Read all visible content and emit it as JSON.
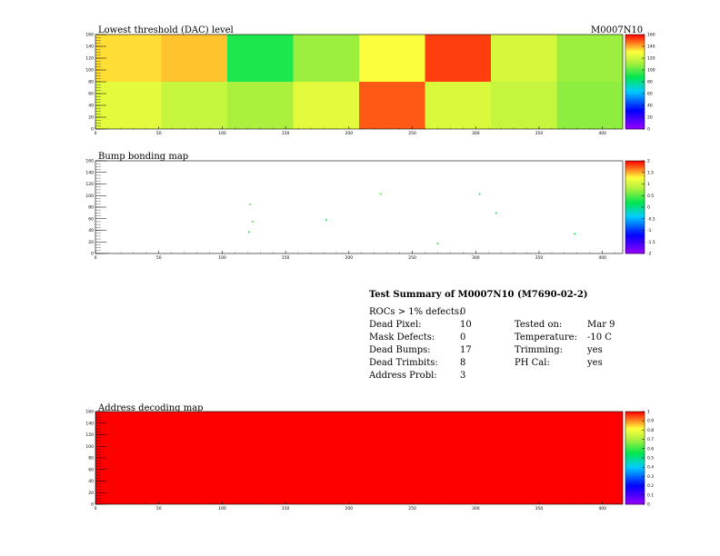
{
  "module_name": "M0007N10",
  "chart_data": [
    {
      "type": "heatmap",
      "title": "Lowest threshold (DAC) level",
      "x_range": [
        0,
        416
      ],
      "y_range": [
        0,
        160
      ],
      "x_ticks": [
        "0",
        "50",
        "100",
        "150",
        "200",
        "250",
        "300",
        "350",
        "400"
      ],
      "y_ticks": [
        "0",
        "20",
        "40",
        "60",
        "80",
        "100",
        "120",
        "140",
        "160"
      ],
      "z_range": [
        0,
        160
      ],
      "z_ticks": [
        "0",
        "20",
        "40",
        "60",
        "80",
        "100",
        "120",
        "140",
        "160"
      ],
      "roc_grid": {
        "columns": 8,
        "rows": 2
      },
      "roc_mean_levels": [
        [
          125,
          118,
          112,
          125,
          150,
          123,
          118,
          108
        ],
        [
          135,
          138,
          92,
          110,
          130,
          153,
          122,
          110
        ]
      ],
      "grid": false
    },
    {
      "type": "heatmap",
      "title": "Bump bonding map",
      "x_range": [
        0,
        416
      ],
      "y_range": [
        0,
        160
      ],
      "x_ticks": [
        "0",
        "50",
        "100",
        "150",
        "200",
        "250",
        "300",
        "350",
        "400"
      ],
      "y_ticks": [
        "0",
        "20",
        "40",
        "60",
        "80",
        "100",
        "120",
        "140",
        "160"
      ],
      "z_range": [
        -2,
        2
      ],
      "z_ticks": [
        "-2",
        "-1.5",
        "-1",
        "-0.5",
        "0",
        "0.5",
        "1",
        "1.5",
        "2"
      ],
      "points": [
        {
          "x": 122,
          "y": 85,
          "v": 0.5
        },
        {
          "x": 124,
          "y": 55,
          "v": 0.5
        },
        {
          "x": 121,
          "y": 37,
          "v": 0.3
        },
        {
          "x": 182,
          "y": 58,
          "v": 0.3
        },
        {
          "x": 225,
          "y": 103,
          "v": 0.5
        },
        {
          "x": 270,
          "y": 17,
          "v": 0.3
        },
        {
          "x": 303,
          "y": 103,
          "v": 0.3
        },
        {
          "x": 316,
          "y": 70,
          "v": 0.3
        },
        {
          "x": 378,
          "y": 34,
          "v": 0.3
        }
      ],
      "grid": false
    },
    {
      "type": "heatmap",
      "title": "Address decoding map",
      "x_range": [
        0,
        416
      ],
      "y_range": [
        0,
        160
      ],
      "x_ticks": [
        "0",
        "50",
        "100",
        "150",
        "200",
        "250",
        "300",
        "350",
        "400"
      ],
      "y_ticks": [
        "0",
        "20",
        "40",
        "60",
        "80",
        "100",
        "120",
        "140",
        "160"
      ],
      "z_range": [
        0,
        1
      ],
      "z_ticks": [
        "0",
        "0.1",
        "0.2",
        "0.3",
        "0.4",
        "0.5",
        "0.6",
        "0.7",
        "0.8",
        "0.9",
        "1"
      ],
      "fill_value": 1,
      "grid": false
    }
  ],
  "summary": {
    "heading": "Test Summary of M0007N10 (M7690-02-2)",
    "rows": [
      {
        "label": "ROCs > 1% defects:",
        "value": "0"
      },
      {
        "label": "Dead Pixel:",
        "value": "10",
        "label2": "Tested on:",
        "value2": "Mar 9"
      },
      {
        "label": "Mask Defects:",
        "value": "0",
        "label2": "Temperature:",
        "value2": "-10 C"
      },
      {
        "label": "Dead Bumps:",
        "value": "17",
        "label2": "Trimming:",
        "value2": "yes"
      },
      {
        "label": "Dead Trimbits:",
        "value": "8",
        "label2": "PH Cal:",
        "value2": "yes"
      },
      {
        "label": "Address Probl:",
        "value": "3"
      }
    ]
  }
}
